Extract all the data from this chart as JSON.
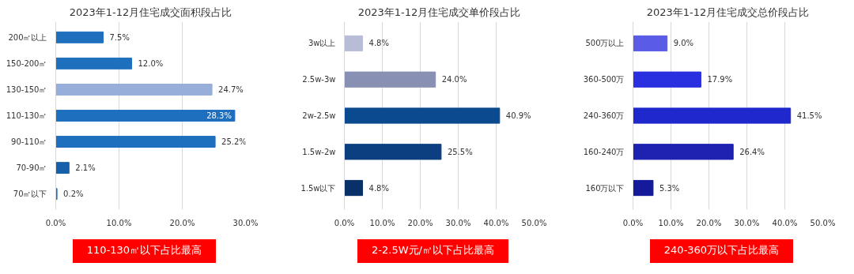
{
  "chart_data": [
    {
      "type": "bar",
      "orientation": "horizontal",
      "title": "2023年1-12月住宅成交面积段占比",
      "categories": [
        "200㎡以上",
        "150-200㎡",
        "130-150㎡",
        "110-130㎡",
        "90-110㎡",
        "70-90㎡",
        "70㎡以下"
      ],
      "values": [
        7.5,
        12.0,
        24.7,
        28.3,
        25.2,
        2.1,
        0.2
      ],
      "value_labels": [
        "7.5%",
        "12.0%",
        "24.7%",
        "28.3%",
        "25.2%",
        "2.1%",
        "0.2%"
      ],
      "colors": [
        "#1f6fbf",
        "#1f6fbf",
        "#97aedb",
        "#1f6fbf",
        "#1f6fbf",
        "#1560a8",
        "#1f6fbf"
      ],
      "xlim": [
        0,
        30
      ],
      "xticks": [
        {
          "value": 0,
          "label": "0.0%"
        },
        {
          "value": 10,
          "label": "10.0%"
        },
        {
          "value": 20,
          "label": "20.0%"
        },
        {
          "value": 30,
          "label": "30.0%"
        }
      ],
      "grid": "x",
      "annotations": [
        "110-130㎡以下占比最高"
      ]
    },
    {
      "type": "bar",
      "orientation": "horizontal",
      "title": "2023年1-12月住宅成交单价段占比",
      "categories": [
        "3w以上",
        "2.5w-3w",
        "2w-2.5w",
        "1.5w-2w",
        "1.5w以下"
      ],
      "values": [
        4.8,
        24.0,
        40.9,
        25.5,
        4.8
      ],
      "value_labels": [
        "4.8%",
        "24.0%",
        "40.9%",
        "25.5%",
        "4.8%"
      ],
      "colors": [
        "#b7bdd6",
        "#8891b4",
        "#0b4a8e",
        "#0b3f80",
        "#0a3068"
      ],
      "xlim": [
        0,
        50
      ],
      "xticks": [
        {
          "value": 0,
          "label": "0.0%"
        },
        {
          "value": 10,
          "label": "10.0%"
        },
        {
          "value": 20,
          "label": "20.0%"
        },
        {
          "value": 30,
          "label": "30.0%"
        },
        {
          "value": 40,
          "label": "40.0%"
        },
        {
          "value": 50,
          "label": "50.0%"
        }
      ],
      "grid": "x",
      "annotations": [
        "2-2.5W元/㎡以下占比最高"
      ]
    },
    {
      "type": "bar",
      "orientation": "horizontal",
      "title": "2023年1-12月住宅成交总价段占比",
      "categories": [
        "500万以上",
        "360-500万",
        "240-360万",
        "160-240万",
        "160万以下"
      ],
      "values": [
        9.0,
        17.9,
        41.5,
        26.4,
        5.3
      ],
      "value_labels": [
        "9.0%",
        "17.9%",
        "41.5%",
        "26.4%",
        "5.3%"
      ],
      "colors": [
        "#5a5ce8",
        "#2a30e0",
        "#1e28cc",
        "#1e22b0",
        "#141a9a"
      ],
      "xlim": [
        0,
        50
      ],
      "xticks": [
        {
          "value": 0,
          "label": "0.0%"
        },
        {
          "value": 10,
          "label": "10.0%"
        },
        {
          "value": 20,
          "label": "20.0%"
        },
        {
          "value": 30,
          "label": "30.0%"
        },
        {
          "value": 40,
          "label": "40.0%"
        },
        {
          "value": 50,
          "label": "50.0%"
        }
      ],
      "grid": "x",
      "annotations": [
        "240-360万以下占比最高"
      ]
    }
  ]
}
